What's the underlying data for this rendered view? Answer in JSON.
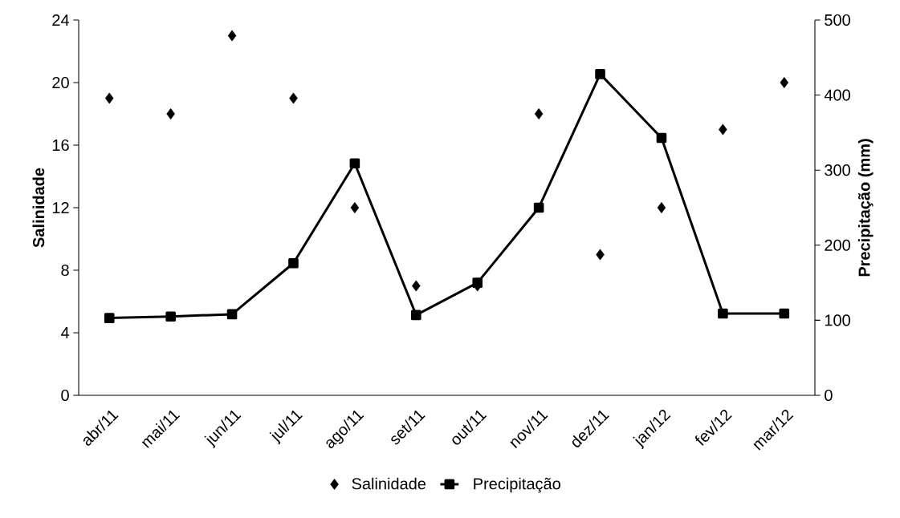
{
  "chart_data": {
    "type": "line",
    "ylabel": "Salinidade",
    "y2label": "Precipitação (mm)",
    "categories": [
      "abr/11",
      "mai/11",
      "jun/11",
      "jul/11",
      "ago/11",
      "set/11",
      "out/11",
      "nov/11",
      "dez/11",
      "jan/12",
      "fev/12",
      "mar/12"
    ],
    "ylim": [
      0,
      24
    ],
    "yticks": [
      0,
      4,
      8,
      12,
      16,
      20,
      24
    ],
    "y2lim": [
      0,
      500
    ],
    "y2ticks": [
      0,
      100,
      200,
      300,
      400,
      500
    ],
    "legend": "bottom",
    "grid": false,
    "series": [
      {
        "name": "Salinidade",
        "type": "scatter",
        "marker": "diamond",
        "color": "#000000",
        "values": [
          19,
          18,
          23,
          19,
          12,
          7,
          7,
          18,
          9,
          12,
          17,
          20
        ]
      },
      {
        "name": "Precipitação",
        "marker": "square",
        "axis": "y2",
        "color": "#000000",
        "line_style": "solid",
        "values": [
          103,
          105,
          108,
          176,
          309,
          107,
          150,
          250,
          428,
          343,
          109,
          109
        ]
      }
    ]
  }
}
